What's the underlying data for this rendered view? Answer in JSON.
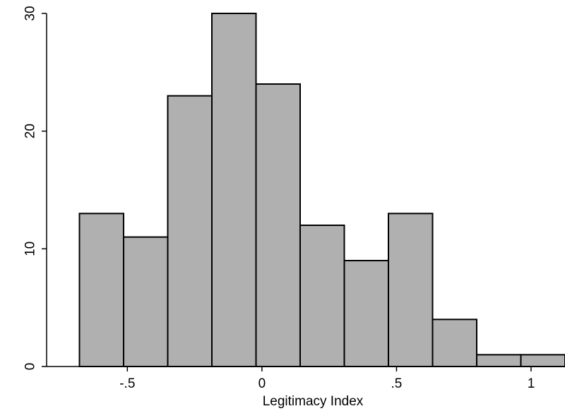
{
  "chart_data": {
    "type": "bar",
    "bins": [
      {
        "x0": -0.678,
        "x1": -0.514,
        "value": 13
      },
      {
        "x0": -0.514,
        "x1": -0.35,
        "value": 11
      },
      {
        "x0": -0.35,
        "x1": -0.186,
        "value": 23
      },
      {
        "x0": -0.186,
        "x1": -0.022,
        "value": 30
      },
      {
        "x0": -0.022,
        "x1": 0.142,
        "value": 24
      },
      {
        "x0": 0.142,
        "x1": 0.306,
        "value": 12
      },
      {
        "x0": 0.306,
        "x1": 0.47,
        "value": 9
      },
      {
        "x0": 0.47,
        "x1": 0.634,
        "value": 13
      },
      {
        "x0": 0.634,
        "x1": 0.798,
        "value": 4
      },
      {
        "x0": 0.798,
        "x1": 0.962,
        "value": 1
      },
      {
        "x0": 0.962,
        "x1": 1.126,
        "value": 1
      }
    ],
    "xlabel": "Legitimacy Index",
    "ylabel": "",
    "xticks": [
      {
        "value": -0.5,
        "label": "-.5"
      },
      {
        "value": 0,
        "label": "0"
      },
      {
        "value": 0.5,
        "label": ".5"
      },
      {
        "value": 1,
        "label": "1"
      }
    ],
    "yticks": [
      {
        "value": 0,
        "label": "0"
      },
      {
        "value": 10,
        "label": "10"
      },
      {
        "value": 20,
        "label": "20"
      },
      {
        "value": 30,
        "label": "30"
      }
    ],
    "xlim": [
      -0.8,
      1.126
    ],
    "ylim": [
      0,
      30
    ],
    "grid": false,
    "colors": {
      "bar_fill": "#b0b0b0",
      "bar_stroke": "#000000"
    }
  }
}
